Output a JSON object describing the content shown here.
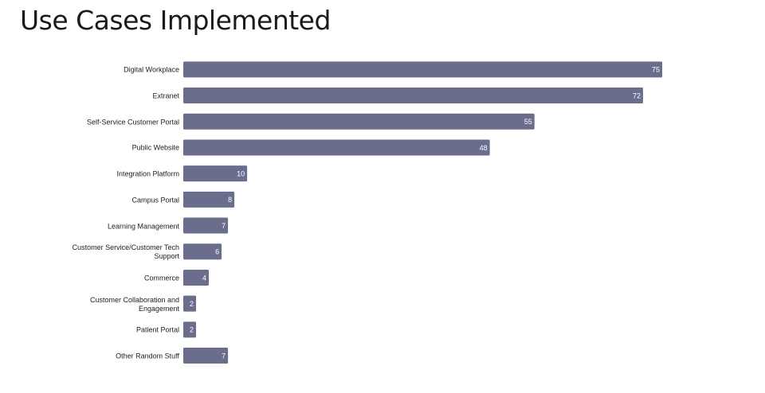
{
  "chart_data": {
    "type": "bar",
    "orientation": "horizontal",
    "title": "Use Cases Implemented",
    "categories": [
      "Digital Workplace",
      "Extranet",
      "Self-Service Customer Portal",
      "Public Website",
      "Integration Platform",
      "Campus Portal",
      "Learning Management",
      "Customer Service/Customer Tech Support",
      "Commerce",
      "Customer Collaboration and Engagement",
      "Patient Portal",
      "Other Random Stuff"
    ],
    "values": [
      75,
      72,
      55,
      48,
      10,
      8,
      7,
      6,
      4,
      2,
      2,
      7
    ],
    "color": "#6b6d8c",
    "xlim": [
      0,
      75
    ]
  }
}
